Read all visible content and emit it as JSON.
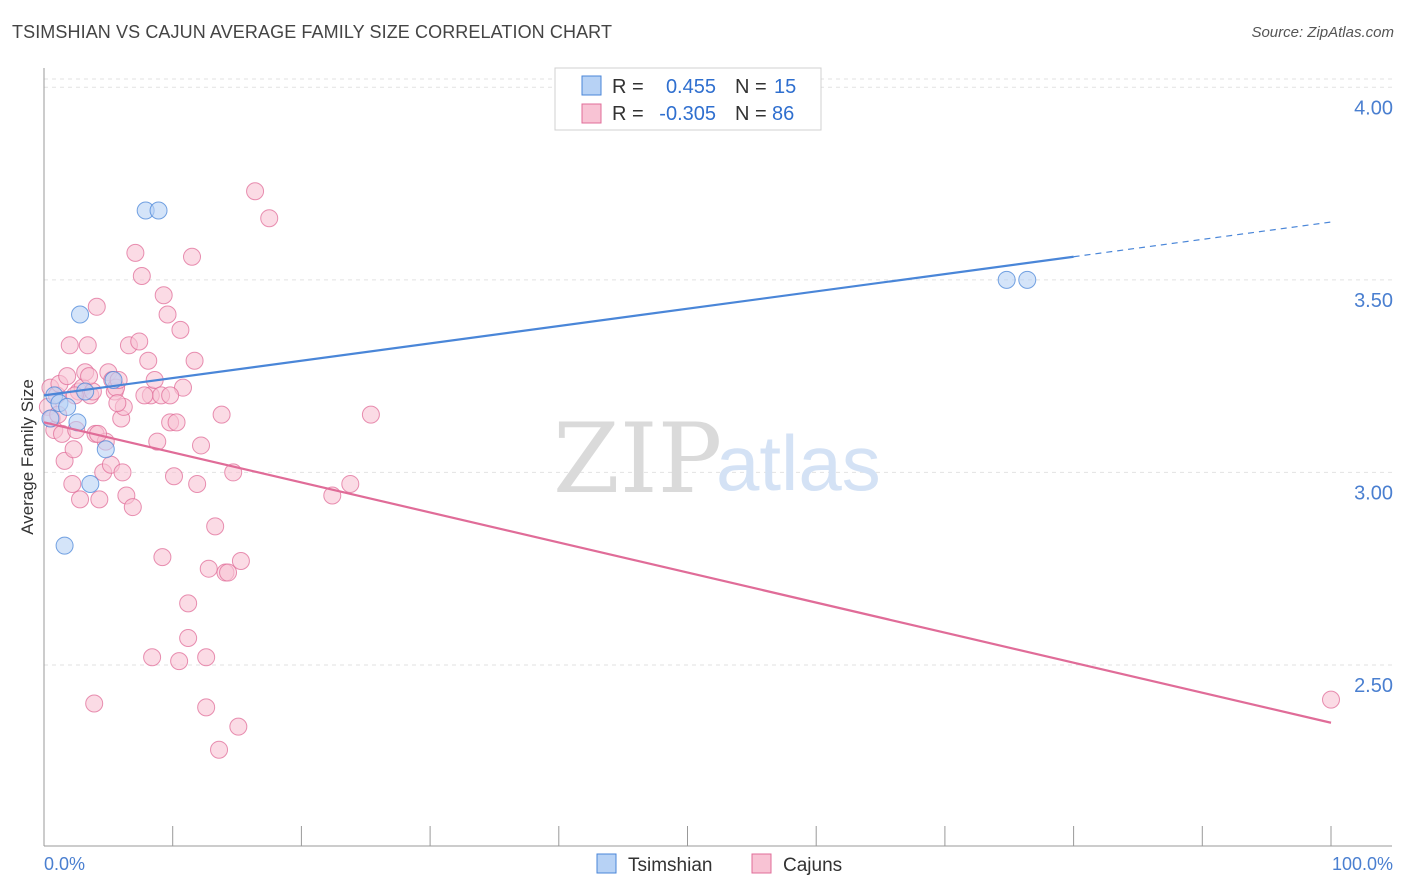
{
  "header": {
    "title": "TSIMSHIAN VS CAJUN AVERAGE FAMILY SIZE CORRELATION CHART",
    "source": "Source: ZipAtlas.com"
  },
  "watermark": {
    "zip": "ZIP",
    "atlas": "atlas"
  },
  "chart_data": {
    "type": "scatter",
    "title": "TSIMSHIAN VS CAJUN AVERAGE FAMILY SIZE CORRELATION CHART",
    "xlabel": "",
    "ylabel": "Average Family Size",
    "xlim": [
      0,
      100
    ],
    "ylim": [
      2.03,
      4.05
    ],
    "x_tick_labels": {
      "left": "0.0%",
      "right": "100.0%"
    },
    "y_ticks": [
      {
        "value": 4.0,
        "label": "4.00"
      },
      {
        "value": 3.5,
        "label": "3.50"
      },
      {
        "value": 3.0,
        "label": "3.00"
      },
      {
        "value": 2.5,
        "label": "2.50"
      }
    ],
    "grid": true,
    "legend_position": "top-center",
    "stats": [
      {
        "series": "Tsimshian",
        "r_label": "R =",
        "r": "0.455",
        "n_label": "N =",
        "n": "15"
      },
      {
        "series": "Cajuns",
        "r_label": "R =",
        "r": "-0.305",
        "n_label": "N =",
        "n": "86"
      }
    ],
    "series": [
      {
        "name": "Tsimshian",
        "color": "#4a86d8",
        "fill": "#b7d2f5",
        "trend": {
          "x0": 0,
          "y0": 3.2,
          "x1": 80,
          "y1": 3.56,
          "dash_to": 100,
          "dash_y": 3.65
        },
        "points": [
          [
            0.5,
            3.14
          ],
          [
            0.8,
            3.2
          ],
          [
            1.2,
            3.18
          ],
          [
            1.6,
            2.81
          ],
          [
            1.8,
            3.17
          ],
          [
            2.6,
            3.13
          ],
          [
            2.8,
            3.41
          ],
          [
            3.2,
            3.21
          ],
          [
            3.6,
            2.97
          ],
          [
            4.8,
            3.06
          ],
          [
            5.4,
            3.24
          ],
          [
            7.9,
            3.68
          ],
          [
            8.9,
            3.68
          ],
          [
            74.8,
            3.5
          ],
          [
            76.4,
            3.5
          ]
        ]
      },
      {
        "name": "Cajuns",
        "color": "#e06c98",
        "fill": "#f8c3d4",
        "trend": {
          "x0": 0,
          "y0": 3.13,
          "x1": 100,
          "y1": 2.35
        },
        "points": [
          [
            0.3,
            3.17
          ],
          [
            0.5,
            3.22
          ],
          [
            0.6,
            3.14
          ],
          [
            0.8,
            3.11
          ],
          [
            1.0,
            3.2
          ],
          [
            1.2,
            3.23
          ],
          [
            1.4,
            3.1
          ],
          [
            1.6,
            3.03
          ],
          [
            1.8,
            3.25
          ],
          [
            2.0,
            3.33
          ],
          [
            2.2,
            2.97
          ],
          [
            2.3,
            3.06
          ],
          [
            2.5,
            3.11
          ],
          [
            2.7,
            3.21
          ],
          [
            2.8,
            2.93
          ],
          [
            3.0,
            3.22
          ],
          [
            3.2,
            3.26
          ],
          [
            3.4,
            3.33
          ],
          [
            3.6,
            3.2
          ],
          [
            3.8,
            3.21
          ],
          [
            4.0,
            3.1
          ],
          [
            4.1,
            3.43
          ],
          [
            4.3,
            2.93
          ],
          [
            4.6,
            3.0
          ],
          [
            4.8,
            3.08
          ],
          [
            5.0,
            3.26
          ],
          [
            5.2,
            3.02
          ],
          [
            5.3,
            3.24
          ],
          [
            5.5,
            3.21
          ],
          [
            5.6,
            3.22
          ],
          [
            5.8,
            3.24
          ],
          [
            6.0,
            3.14
          ],
          [
            6.2,
            3.17
          ],
          [
            6.4,
            2.94
          ],
          [
            6.6,
            3.33
          ],
          [
            6.9,
            2.91
          ],
          [
            7.1,
            3.57
          ],
          [
            7.4,
            3.34
          ],
          [
            7.6,
            3.51
          ],
          [
            8.1,
            3.29
          ],
          [
            8.3,
            3.2
          ],
          [
            8.6,
            3.24
          ],
          [
            8.8,
            3.08
          ],
          [
            9.1,
            3.2
          ],
          [
            9.3,
            3.46
          ],
          [
            9.6,
            3.41
          ],
          [
            9.8,
            3.13
          ],
          [
            10.1,
            2.99
          ],
          [
            10.3,
            3.13
          ],
          [
            10.6,
            3.37
          ],
          [
            10.8,
            3.22
          ],
          [
            11.2,
            2.66
          ],
          [
            11.5,
            3.56
          ],
          [
            11.7,
            3.29
          ],
          [
            11.9,
            2.97
          ],
          [
            12.2,
            3.07
          ],
          [
            12.6,
            2.39
          ],
          [
            12.8,
            2.75
          ],
          [
            13.3,
            2.86
          ],
          [
            13.6,
            2.28
          ],
          [
            13.8,
            3.15
          ],
          [
            14.1,
            2.74
          ],
          [
            14.3,
            2.74
          ],
          [
            14.7,
            3.0
          ],
          [
            15.3,
            2.77
          ],
          [
            15.1,
            2.34
          ],
          [
            16.4,
            3.73
          ],
          [
            17.5,
            3.66
          ],
          [
            22.4,
            2.94
          ],
          [
            23.8,
            2.97
          ],
          [
            25.4,
            3.15
          ],
          [
            8.4,
            2.52
          ],
          [
            10.5,
            2.51
          ],
          [
            11.2,
            2.57
          ],
          [
            12.6,
            2.52
          ],
          [
            3.9,
            2.4
          ],
          [
            9.2,
            2.78
          ],
          [
            6.1,
            3.0
          ],
          [
            4.2,
            3.1
          ],
          [
            2.4,
            3.2
          ],
          [
            1.1,
            3.15
          ],
          [
            7.8,
            3.2
          ],
          [
            5.7,
            3.18
          ],
          [
            9.8,
            3.2
          ],
          [
            3.5,
            3.25
          ],
          [
            100.0,
            2.41
          ]
        ]
      }
    ]
  }
}
